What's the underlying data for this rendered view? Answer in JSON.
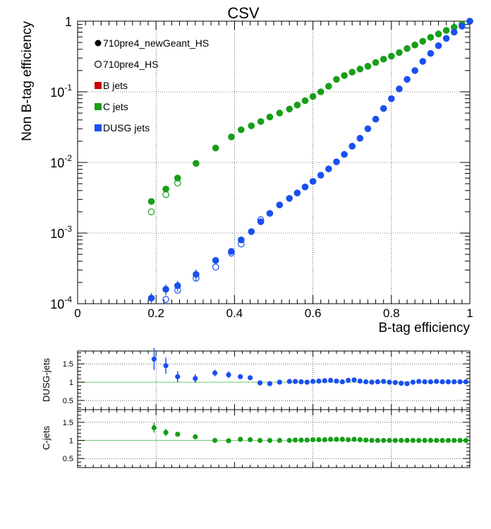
{
  "colors": {
    "c_jets": "#179e17",
    "dusg_jets": "#1a4ff0",
    "b_jets": "#cc0000",
    "ratio_ref_line": "#66cc66"
  },
  "main": {
    "title": "CSV",
    "xlabel": "B-tag efficiency",
    "ylabel": "Non B-tag efficiency",
    "x_ticks": [
      "0",
      "0.2",
      "0.4",
      "0.6",
      "0.8",
      "1"
    ],
    "y_ticks": [
      {
        "base": "10",
        "exp": "-4"
      },
      {
        "base": "10",
        "exp": "-3"
      },
      {
        "base": "10",
        "exp": "-2"
      },
      {
        "base": "10",
        "exp": "-1"
      },
      {
        "base": "1",
        "exp": ""
      }
    ]
  },
  "legend": [
    {
      "label": "710pre4_newGeant_HS",
      "symbol": "filled-circle",
      "color": "#000000"
    },
    {
      "label": "710pre4_HS",
      "symbol": "open-circle",
      "color": "#000000"
    },
    {
      "label": "B jets",
      "symbol": "square",
      "color": "#cc0000"
    },
    {
      "label": "C jets",
      "symbol": "square",
      "color": "#179e17"
    },
    {
      "label": "DUSG jets",
      "symbol": "square",
      "color": "#1a4ff0"
    }
  ],
  "ratio_dusg": {
    "ylabel": "DUSG-jets",
    "y_ticks": [
      "1.5",
      "1",
      "0.5"
    ]
  },
  "ratio_c": {
    "ylabel": "C-jets",
    "y_ticks": [
      "1.5",
      "1",
      "0.5"
    ]
  },
  "chart_data": [
    {
      "type": "scatter",
      "title": "CSV",
      "xlabel": "B-tag efficiency",
      "ylabel": "Non B-tag efficiency",
      "xlim": [
        0,
        1
      ],
      "ylim": [
        0.0001,
        1
      ],
      "yscale": "log",
      "grid": true,
      "legend_position": "top-left",
      "series": [
        {
          "name": "C jets — 710pre4_newGeant_HS",
          "x": [
            0.188,
            0.225,
            0.255,
            0.302,
            0.352,
            0.392,
            0.417,
            0.443,
            0.467,
            0.49,
            0.515,
            0.54,
            0.56,
            0.58,
            0.6,
            0.62,
            0.64,
            0.66,
            0.68,
            0.7,
            0.72,
            0.74,
            0.76,
            0.78,
            0.8,
            0.82,
            0.84,
            0.86,
            0.88,
            0.9,
            0.92,
            0.94,
            0.96,
            0.98,
            1.0
          ],
          "y": [
            0.0028,
            0.0042,
            0.006,
            0.0097,
            0.016,
            0.023,
            0.029,
            0.033,
            0.038,
            0.044,
            0.05,
            0.057,
            0.065,
            0.075,
            0.086,
            0.1,
            0.12,
            0.15,
            0.17,
            0.19,
            0.21,
            0.23,
            0.26,
            0.29,
            0.32,
            0.36,
            0.41,
            0.46,
            0.52,
            0.59,
            0.66,
            0.74,
            0.82,
            0.9,
            1.0
          ]
        },
        {
          "name": "C jets — 710pre4_HS",
          "x": [
            0.188,
            0.225,
            0.255
          ],
          "y": [
            0.002,
            0.0035,
            0.0051
          ]
        },
        {
          "name": "DUSG jets — 710pre4_newGeant_HS",
          "x": [
            0.188,
            0.225,
            0.255,
            0.302,
            0.352,
            0.392,
            0.417,
            0.443,
            0.467,
            0.49,
            0.515,
            0.54,
            0.56,
            0.58,
            0.6,
            0.62,
            0.64,
            0.66,
            0.68,
            0.7,
            0.72,
            0.74,
            0.76,
            0.78,
            0.8,
            0.82,
            0.84,
            0.86,
            0.88,
            0.9,
            0.92,
            0.94,
            0.96,
            0.98,
            1.0
          ],
          "y": [
            0.00012,
            0.00016,
            0.00018,
            0.00026,
            0.00041,
            0.00055,
            0.0008,
            0.00105,
            0.00145,
            0.0019,
            0.0025,
            0.0031,
            0.0037,
            0.0045,
            0.0054,
            0.0066,
            0.0081,
            0.0102,
            0.013,
            0.017,
            0.022,
            0.03,
            0.041,
            0.058,
            0.08,
            0.11,
            0.15,
            0.2,
            0.27,
            0.35,
            0.45,
            0.57,
            0.7,
            0.85,
            1.0
          ]
        },
        {
          "name": "DUSG jets — 710pre4_HS",
          "x": [
            0.225,
            0.255,
            0.302,
            0.352,
            0.392,
            0.417,
            0.467
          ],
          "y": [
            0.000115,
            0.000155,
            0.00023,
            0.00033,
            0.00052,
            0.0007,
            0.00155
          ]
        }
      ]
    },
    {
      "type": "scatter",
      "ylabel": "DUSG-jets",
      "xlim": [
        0,
        1
      ],
      "ylim": [
        0.25,
        1.85
      ],
      "grid": true,
      "reference_line": 1,
      "series": [
        {
          "x": [
            0.195,
            0.225,
            0.255,
            0.3,
            0.35,
            0.385,
            0.415,
            0.44,
            0.465,
            0.49,
            0.515,
            0.54,
            0.555,
            0.57,
            0.585,
            0.6,
            0.615,
            0.63,
            0.645,
            0.66,
            0.675,
            0.69,
            0.705,
            0.72,
            0.735,
            0.75,
            0.765,
            0.78,
            0.795,
            0.81,
            0.825,
            0.84,
            0.855,
            0.87,
            0.885,
            0.9,
            0.915,
            0.93,
            0.945,
            0.96,
            0.975,
            0.99
          ],
          "y": [
            1.63,
            1.45,
            1.15,
            1.1,
            1.25,
            1.2,
            1.15,
            1.12,
            0.98,
            0.96,
            1.0,
            1.02,
            1.02,
            1.01,
            1.0,
            1.02,
            1.03,
            1.04,
            1.05,
            1.03,
            1.01,
            1.05,
            1.06,
            1.03,
            1.01,
            1.0,
            1.01,
            1.02,
            1.0,
            0.99,
            0.97,
            0.96,
            1.0,
            1.02,
            1.01,
            1.01,
            1.02,
            1.01,
            1.01,
            1.01,
            1.01,
            1.01
          ]
        }
      ]
    },
    {
      "type": "scatter",
      "ylabel": "C-jets",
      "xlim": [
        0,
        1
      ],
      "ylim": [
        0.25,
        1.85
      ],
      "grid": true,
      "reference_line": 1,
      "series": [
        {
          "x": [
            0.195,
            0.225,
            0.255,
            0.3,
            0.35,
            0.385,
            0.415,
            0.44,
            0.465,
            0.49,
            0.515,
            0.54,
            0.555,
            0.57,
            0.585,
            0.6,
            0.615,
            0.63,
            0.645,
            0.66,
            0.675,
            0.69,
            0.705,
            0.72,
            0.735,
            0.75,
            0.765,
            0.78,
            0.795,
            0.81,
            0.825,
            0.84,
            0.855,
            0.87,
            0.885,
            0.9,
            0.915,
            0.93,
            0.945,
            0.96,
            0.975,
            0.99
          ],
          "y": [
            1.35,
            1.22,
            1.17,
            1.1,
            1.0,
            0.99,
            1.03,
            1.02,
            1.0,
            1.0,
            1.0,
            1.0,
            1.01,
            1.01,
            1.01,
            1.02,
            1.02,
            1.02,
            1.03,
            1.03,
            1.03,
            1.02,
            1.03,
            1.02,
            1.01,
            1.0,
            1.0,
            1.0,
            1.0,
            1.0,
            1.0,
            1.0,
            1.0,
            1.0,
            1.0,
            1.0,
            1.0,
            1.0,
            1.0,
            1.0,
            1.0,
            1.0
          ]
        }
      ]
    }
  ]
}
